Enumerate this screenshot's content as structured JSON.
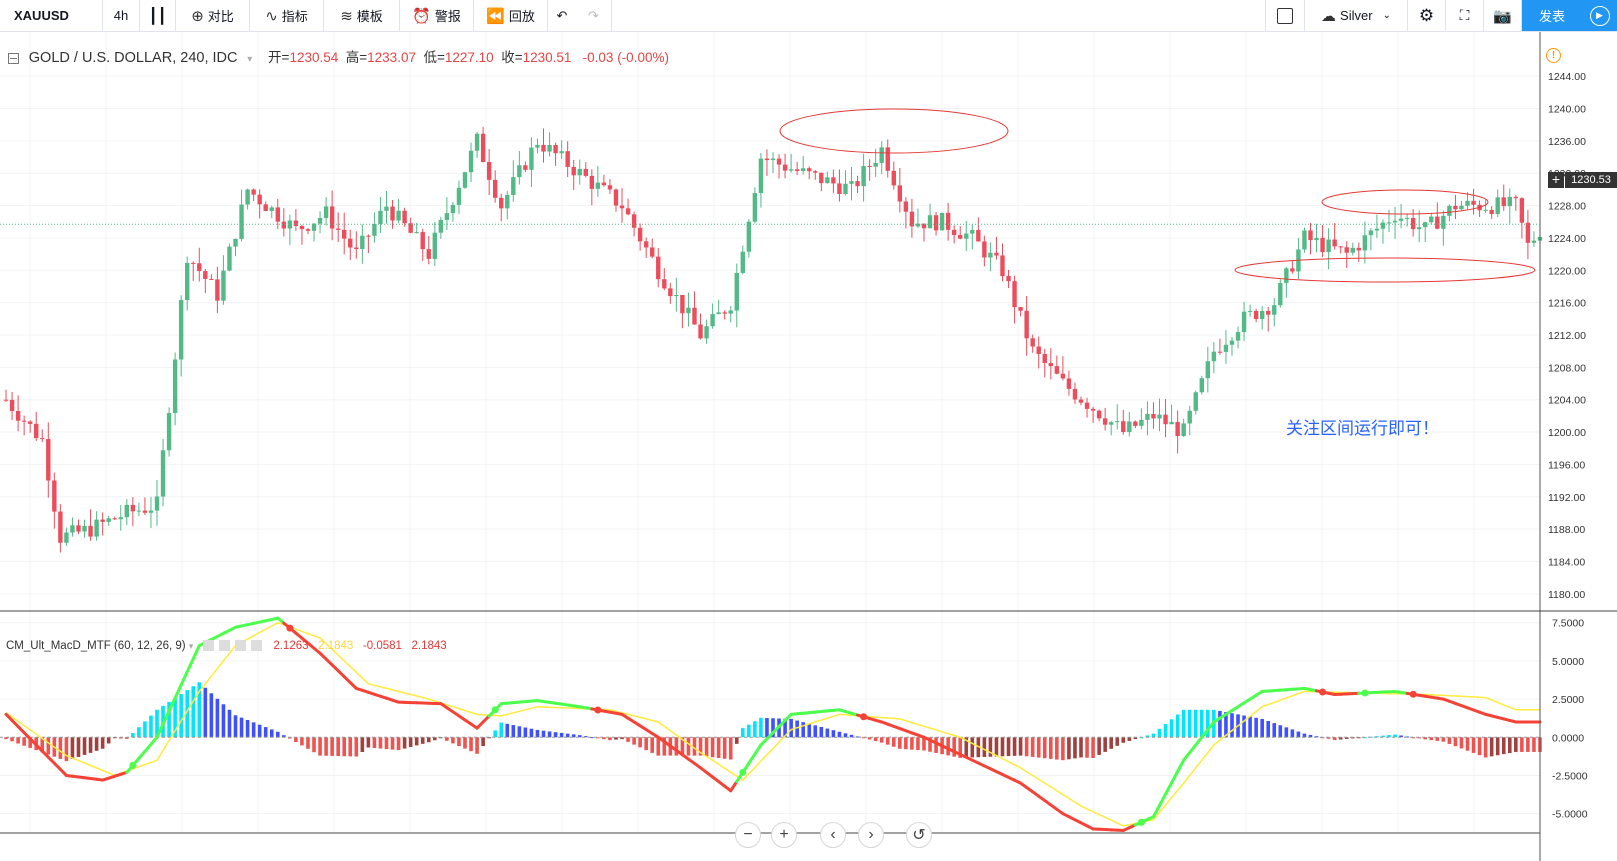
{
  "toolbar": {
    "symbol": "XAUUSD",
    "interval": "4h",
    "compare_label": "对比",
    "indicators_label": "指标",
    "templates_label": "模板",
    "alert_label": "警报",
    "replay_label": "回放",
    "save_label": "Silver",
    "publish_label": "发表"
  },
  "legend": {
    "title": "GOLD / U.S. DOLLAR, 240, IDC",
    "open_label": "开=",
    "open": "1230.54",
    "high_label": "高=",
    "high": "1233.07",
    "low_label": "低=",
    "low": "1227.10",
    "close_label": "收=",
    "close": "1230.51",
    "change": "-0.03 (-0.00%)"
  },
  "macd_legend": {
    "name": "CM_Ult_MacD_MTF (60, 12, 26, 9)",
    "v1": "2.1263",
    "v2": "2.1843",
    "v3": "-0.0581",
    "v4": "2.1843"
  },
  "current_price": "1230.53",
  "annotation_text": "关注区间运行即可！",
  "colors": {
    "up": "#53b987",
    "down": "#eb4d5c",
    "accent": "#2196f3",
    "ellipse": "#e53935"
  },
  "chart_data": [
    {
      "type": "candlestick",
      "title": "GOLD / U.S. DOLLAR, 240, IDC",
      "ylim": [
        1178,
        1246
      ],
      "y_ticks": [
        "1244.00",
        "1240.00",
        "1236.00",
        "1232.00",
        "1228.00",
        "1224.00",
        "1220.00",
        "1216.00",
        "1212.00",
        "1208.00",
        "1204.00",
        "1200.00",
        "1196.00",
        "1192.00",
        "1188.00",
        "1184.00",
        "1180.00"
      ],
      "anchors": [
        [
          0,
          1204
        ],
        [
          6,
          1199
        ],
        [
          9,
          1187
        ],
        [
          14,
          1188
        ],
        [
          20,
          1190
        ],
        [
          25,
          1191
        ],
        [
          30,
          1222
        ],
        [
          35,
          1217
        ],
        [
          40,
          1230
        ],
        [
          48,
          1225
        ],
        [
          53,
          1227
        ],
        [
          58,
          1222
        ],
        [
          63,
          1228
        ],
        [
          70,
          1222
        ],
        [
          78,
          1236
        ],
        [
          82,
          1228
        ],
        [
          88,
          1236
        ],
        [
          95,
          1232
        ],
        [
          102,
          1228
        ],
        [
          108,
          1220
        ],
        [
          115,
          1212
        ],
        [
          120,
          1216
        ],
        [
          125,
          1234
        ],
        [
          132,
          1232
        ],
        [
          140,
          1230
        ],
        [
          145,
          1235
        ],
        [
          150,
          1226
        ],
        [
          155,
          1226
        ],
        [
          160,
          1224
        ],
        [
          165,
          1220
        ],
        [
          170,
          1210
        ],
        [
          175,
          1206
        ],
        [
          180,
          1203
        ],
        [
          185,
          1200
        ],
        [
          190,
          1202
        ],
        [
          195,
          1200
        ],
        [
          200,
          1210
        ],
        [
          205,
          1214
        ],
        [
          210,
          1216
        ],
        [
          215,
          1224
        ],
        [
          222,
          1222
        ],
        [
          230,
          1227
        ],
        [
          235,
          1225
        ],
        [
          240,
          1228
        ],
        [
          250,
          1228
        ],
        [
          252,
          1223
        ],
        [
          254,
          1225
        ]
      ]
    },
    {
      "type": "line",
      "title": "CM_Ult_MacD_MTF (60, 12, 26, 9)",
      "ylim": [
        -6.2,
        8.2
      ],
      "y_ticks": [
        "7.5000",
        "5.0000",
        "2.5000",
        "0.0000",
        "-2.5000",
        "-5.0000"
      ],
      "series": [
        {
          "name": "",
          "anchors": [
            [
              0,
              1.5
            ],
            [
              10,
              -2.5
            ],
            [
              16,
              -2.8
            ],
            [
              20,
              -2.3
            ],
            [
              25,
              0
            ],
            [
              32,
              6
            ],
            [
              38,
              7.2
            ],
            [
              45,
              7.8
            ],
            [
              52,
              5.5
            ],
            [
              58,
              3.2
            ],
            [
              65,
              2.3
            ],
            [
              72,
              2.2
            ],
            [
              78,
              0.6
            ],
            [
              82,
              2.2
            ],
            [
              88,
              2.4
            ],
            [
              95,
              2
            ],
            [
              102,
              1.5
            ],
            [
              108,
              0
            ],
            [
              115,
              -2
            ],
            [
              120,
              -3.5
            ],
            [
              125,
              -0.5
            ],
            [
              130,
              1.5
            ],
            [
              138,
              1.8
            ],
            [
              145,
              1
            ],
            [
              152,
              0
            ],
            [
              160,
              -1.5
            ],
            [
              168,
              -3
            ],
            [
              175,
              -5
            ],
            [
              180,
              -6
            ],
            [
              185,
              -6.1
            ],
            [
              190,
              -5.2
            ],
            [
              195,
              -1.5
            ],
            [
              200,
              1
            ],
            [
              208,
              3
            ],
            [
              215,
              3.2
            ],
            [
              220,
              2.8
            ],
            [
              230,
              3
            ],
            [
              238,
              2.5
            ],
            [
              245,
              1.5
            ],
            [
              250,
              1
            ]
          ]
        },
        {
          "name": "",
          "anchors": [
            [
              0,
              1.6
            ],
            [
              10,
              -1.2
            ],
            [
              18,
              -2.5
            ],
            [
              25,
              -1.5
            ],
            [
              32,
              3
            ],
            [
              38,
              6
            ],
            [
              45,
              7.5
            ],
            [
              52,
              6.5
            ],
            [
              60,
              3.5
            ],
            [
              70,
              2.5
            ],
            [
              78,
              1.5
            ],
            [
              82,
              1.4
            ],
            [
              88,
              2
            ],
            [
              100,
              1.8
            ],
            [
              108,
              1
            ],
            [
              115,
              -1
            ],
            [
              122,
              -2.8
            ],
            [
              130,
              0.5
            ],
            [
              138,
              1.5
            ],
            [
              148,
              1.2
            ],
            [
              158,
              0
            ],
            [
              168,
              -2
            ],
            [
              178,
              -4.5
            ],
            [
              185,
              -5.8
            ],
            [
              190,
              -5.4
            ],
            [
              195,
              -3
            ],
            [
              200,
              -0.5
            ],
            [
              208,
              2
            ],
            [
              215,
              3
            ],
            [
              225,
              2.9
            ],
            [
              235,
              2.8
            ],
            [
              245,
              2.6
            ],
            [
              250,
              1.8
            ]
          ]
        }
      ]
    }
  ]
}
